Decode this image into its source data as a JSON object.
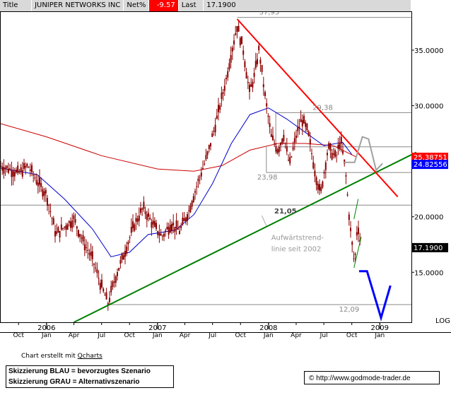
{
  "header": {
    "title_label": "Title",
    "title_value": "JUNIPER NETWORKS INC",
    "net_label": "Net%",
    "net_value": "-9.57",
    "last_label": "Last",
    "last_value": "17.1900"
  },
  "colors": {
    "candles": "#8b0000",
    "ma_red": "#cc0000",
    "ma_blue": "#0000cc",
    "trend_green": "#008000",
    "trend_red": "#ff0000",
    "scenario_blue": "#0000ff",
    "scenario_gray": "#a0a0a0",
    "level_gray": "#888888",
    "price_box_red": "#ff0000",
    "price_box_blue": "#0000ff",
    "price_box_black": "#000000"
  },
  "chart_data": {
    "type": "candlestick",
    "symbol": "JUNIPER NETWORKS INC",
    "ylim": [
      10.5,
      38.5
    ],
    "y_scale": "linear",
    "y_ticks": [
      "15.0000",
      "20.0000",
      "25.0000",
      "30.0000",
      "35.0000"
    ],
    "y_tick_values": [
      15,
      20,
      25,
      30,
      35
    ],
    "y_axis_extra_label": "LOG",
    "x_month_ticks": [
      {
        "label": "Oct",
        "date": "2005-10-01"
      },
      {
        "label": "Jan",
        "date": "2006-01-01"
      },
      {
        "label": "Apr",
        "date": "2006-04-01"
      },
      {
        "label": "Jul",
        "date": "2006-07-01"
      },
      {
        "label": "Oct",
        "date": "2006-10-01"
      },
      {
        "label": "Jan",
        "date": "2007-01-01"
      },
      {
        "label": "Apr",
        "date": "2007-04-01"
      },
      {
        "label": "Jul",
        "date": "2007-07-01"
      },
      {
        "label": "Oct",
        "date": "2007-10-01"
      },
      {
        "label": "Jan",
        "date": "2008-01-01"
      },
      {
        "label": "Apr",
        "date": "2008-04-01"
      },
      {
        "label": "Jul",
        "date": "2008-07-01"
      },
      {
        "label": "Oct",
        "date": "2008-10-01"
      },
      {
        "label": "Jan",
        "date": "2009-01-01"
      }
    ],
    "x_year_labels": [
      {
        "label": "2006",
        "date": "2006-01-01"
      },
      {
        "label": "2007",
        "date": "2007-01-01"
      },
      {
        "label": "2008",
        "date": "2008-01-01"
      },
      {
        "label": "2009",
        "date": "2009-01-01"
      }
    ],
    "price_path": [
      [
        "2005-08-01",
        24.6
      ],
      [
        "2005-09-01",
        24.3
      ],
      [
        "2005-10-01",
        23.9
      ],
      [
        "2005-11-01",
        24.6
      ],
      [
        "2005-12-01",
        23.2
      ],
      [
        "2006-01-01",
        22.0
      ],
      [
        "2006-02-01",
        18.4
      ],
      [
        "2006-03-01",
        19.1
      ],
      [
        "2006-04-01",
        19.8
      ],
      [
        "2006-05-01",
        17.8
      ],
      [
        "2006-06-01",
        16.2
      ],
      [
        "2006-07-01",
        13.7
      ],
      [
        "2006-07-22",
        12.2
      ],
      [
        "2006-08-15",
        14.5
      ],
      [
        "2006-09-15",
        16.8
      ],
      [
        "2006-10-15",
        19.2
      ],
      [
        "2006-11-15",
        20.8
      ],
      [
        "2006-12-15",
        19.4
      ],
      [
        "2007-01-15",
        18.2
      ],
      [
        "2007-02-15",
        19.4
      ],
      [
        "2007-03-15",
        18.7
      ],
      [
        "2007-04-15",
        20.6
      ],
      [
        "2007-05-15",
        23.2
      ],
      [
        "2007-06-15",
        25.6
      ],
      [
        "2007-07-15",
        28.8
      ],
      [
        "2007-08-15",
        32.4
      ],
      [
        "2007-09-01",
        34.8
      ],
      [
        "2007-09-20",
        37.2
      ],
      [
        "2007-10-10",
        35.0
      ],
      [
        "2007-10-30",
        31.2
      ],
      [
        "2007-11-15",
        32.6
      ],
      [
        "2007-12-01",
        35.1
      ],
      [
        "2007-12-20",
        31.0
      ],
      [
        "2008-01-10",
        27.2
      ],
      [
        "2008-02-01",
        26.0
      ],
      [
        "2008-02-20",
        27.4
      ],
      [
        "2008-03-10",
        24.6
      ],
      [
        "2008-04-01",
        27.3
      ],
      [
        "2008-04-20",
        28.8
      ],
      [
        "2008-05-10",
        27.6
      ],
      [
        "2008-06-01",
        24.2
      ],
      [
        "2008-06-20",
        22.0
      ],
      [
        "2008-07-15",
        26.2
      ],
      [
        "2008-08-10",
        25.3
      ],
      [
        "2008-08-25",
        27.0
      ],
      [
        "2008-09-10",
        24.2
      ],
      [
        "2008-09-25",
        19.2
      ],
      [
        "2008-10-10",
        15.6
      ],
      [
        "2008-10-20",
        19.6
      ],
      [
        "2008-10-31",
        17.19
      ]
    ],
    "ma_red_path": [
      [
        "2005-08-01",
        28.4
      ],
      [
        "2006-01-01",
        27.2
      ],
      [
        "2006-07-01",
        25.5
      ],
      [
        "2007-01-01",
        24.3
      ],
      [
        "2007-05-01",
        24.1
      ],
      [
        "2007-08-01",
        24.6
      ],
      [
        "2007-11-01",
        26.0
      ],
      [
        "2008-02-01",
        26.6
      ],
      [
        "2008-05-01",
        26.6
      ],
      [
        "2008-08-01",
        26.4
      ],
      [
        "2008-10-15",
        25.4
      ]
    ],
    "ma_blue_path": [
      [
        "2005-08-01",
        24.4
      ],
      [
        "2005-12-01",
        23.8
      ],
      [
        "2006-03-01",
        21.6
      ],
      [
        "2006-06-01",
        18.9
      ],
      [
        "2006-08-01",
        16.4
      ],
      [
        "2006-10-01",
        16.8
      ],
      [
        "2006-12-01",
        18.4
      ],
      [
        "2007-03-01",
        18.8
      ],
      [
        "2007-05-01",
        20.2
      ],
      [
        "2007-07-01",
        23.0
      ],
      [
        "2007-09-01",
        26.6
      ],
      [
        "2007-11-01",
        29.2
      ],
      [
        "2008-01-01",
        29.8
      ],
      [
        "2008-03-01",
        28.8
      ],
      [
        "2008-05-01",
        27.6
      ],
      [
        "2008-07-01",
        26.4
      ],
      [
        "2008-09-01",
        26.7
      ],
      [
        "2008-10-01",
        25.6
      ]
    ],
    "trendlines": [
      {
        "color": "green",
        "from": [
          "2006-04-01",
          10.5
        ],
        "to": [
          "2009-05-01",
          25.8
        ]
      },
      {
        "color": "red",
        "from": [
          "2007-09-20",
          37.8
        ],
        "to": [
          "2009-03-01",
          21.8
        ]
      }
    ],
    "horizontal_levels": [
      {
        "value": 37.95,
        "label": "37,95",
        "from": "2007-09-20",
        "to": "2009-04-15"
      },
      {
        "value": 29.38,
        "label": "29,38",
        "from": "2008-01-25",
        "to": "2009-04-15"
      },
      {
        "value": 23.98,
        "label": "23,98",
        "from": "2007-12-25",
        "to": "2009-04-15"
      },
      {
        "value": 21.05,
        "label": "21,05",
        "from": "2005-08-01",
        "to": "2009-04-15"
      },
      {
        "value": 12.09,
        "label": "12,09",
        "from": "2006-07-20",
        "to": "2009-04-15"
      }
    ],
    "scenario_blue": [
      [
        "2008-10-25",
        15.1
      ],
      [
        "2008-11-20",
        15.1
      ],
      [
        "2009-01-05",
        10.9
      ],
      [
        "2009-02-05",
        13.8
      ]
    ],
    "scenario_gray": [
      [
        "2008-09-05",
        24.9
      ],
      [
        "2008-10-10",
        24.9
      ],
      [
        "2008-11-05",
        27.2
      ],
      [
        "2008-11-25",
        27.0
      ],
      [
        "2008-12-20",
        24.2
      ],
      [
        "2009-01-10",
        24.8
      ]
    ],
    "annotations": [
      {
        "text": "Aufwärtstrend-",
        "date": "2008-01-10",
        "value": 17.9
      },
      {
        "text": "linie seit 2002",
        "date": "2008-01-10",
        "value": 16.9
      }
    ],
    "price_boxes": [
      {
        "value": 25.38751,
        "label": "25.38751",
        "color": "red"
      },
      {
        "value": 24.82556,
        "label": "24.82556",
        "color": "blue"
      },
      {
        "value": 17.19,
        "label": "17.1900",
        "color": "black"
      }
    ]
  },
  "footer": {
    "credit_prefix": "Chart erstellt mit ",
    "credit_link": "Qcharts",
    "legend_line1": "Skizzierung BLAU = bevorzugtes Szenario",
    "legend_line2": "Skizzierung GRAU = Alternativszenario",
    "copyright": "© http://www.godmode-trader.de"
  }
}
